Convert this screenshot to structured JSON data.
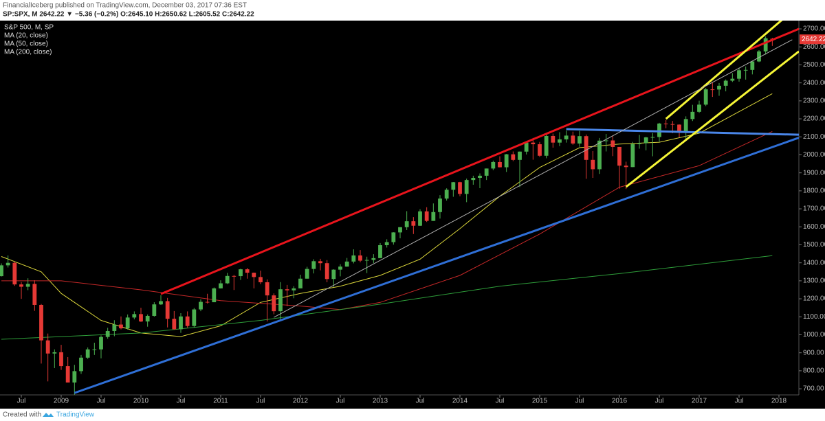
{
  "header": {
    "publisher": "FinancialIceberg published on TradingView.com, December 03, 2017 07:36 EST",
    "quote": "SP:SPX, M  2642.22 ▼ −5.36 (−0.2%) O:2645.10 H:2650.62 L:2605.52 C:2642.22"
  },
  "footer": {
    "created": "Created with",
    "brand": "TradingView"
  },
  "chart_data": {
    "type": "candlestick",
    "title": "S&P 500, M, SP",
    "up_color": "#4caf50",
    "down_color": "#e53935",
    "categories": [
      "2008-04",
      "2008-05",
      "2008-06",
      "2008-07",
      "2008-08",
      "2008-09",
      "2008-10",
      "2008-11",
      "2008-12",
      "2009-01",
      "2009-02",
      "2009-03",
      "2009-04",
      "2009-05",
      "2009-06",
      "2009-07",
      "2009-08",
      "2009-09",
      "2009-10",
      "2009-11",
      "2009-12",
      "2010-01",
      "2010-02",
      "2010-03",
      "2010-04",
      "2010-05",
      "2010-06",
      "2010-07",
      "2010-08",
      "2010-09",
      "2010-10",
      "2010-11",
      "2010-12",
      "2011-01",
      "2011-02",
      "2011-03",
      "2011-04",
      "2011-05",
      "2011-06",
      "2011-07",
      "2011-08",
      "2011-09",
      "2011-10",
      "2011-11",
      "2011-12",
      "2012-01",
      "2012-02",
      "2012-03",
      "2012-04",
      "2012-05",
      "2012-06",
      "2012-07",
      "2012-08",
      "2012-09",
      "2012-10",
      "2012-11",
      "2012-12",
      "2013-01",
      "2013-02",
      "2013-03",
      "2013-04",
      "2013-05",
      "2013-06",
      "2013-07",
      "2013-08",
      "2013-09",
      "2013-10",
      "2013-11",
      "2013-12",
      "2014-01",
      "2014-02",
      "2014-03",
      "2014-04",
      "2014-05",
      "2014-06",
      "2014-07",
      "2014-08",
      "2014-09",
      "2014-10",
      "2014-11",
      "2014-12",
      "2015-01",
      "2015-02",
      "2015-03",
      "2015-04",
      "2015-05",
      "2015-06",
      "2015-07",
      "2015-08",
      "2015-09",
      "2015-10",
      "2015-11",
      "2015-12",
      "2016-01",
      "2016-02",
      "2016-03",
      "2016-04",
      "2016-05",
      "2016-06",
      "2016-07",
      "2016-08",
      "2016-09",
      "2016-10",
      "2016-11",
      "2016-12",
      "2017-01",
      "2017-02",
      "2017-03",
      "2017-04",
      "2017-05",
      "2017-06",
      "2017-07",
      "2017-08",
      "2017-09",
      "2017-10",
      "2017-11",
      "2017-12"
    ],
    "open": [
      1326,
      1386,
      1400,
      1280,
      1267,
      1283,
      1166,
      969,
      896,
      903,
      826,
      735,
      798,
      873,
      919,
      919,
      988,
      1021,
      1057,
      1036,
      1096,
      1115,
      1074,
      1105,
      1169,
      1187,
      1089,
      1031,
      1102,
      1049,
      1141,
      1183,
      1181,
      1258,
      1286,
      1327,
      1326,
      1364,
      1345,
      1321,
      1292,
      1219,
      1131,
      1253,
      1247,
      1258,
      1312,
      1366,
      1409,
      1398,
      1310,
      1362,
      1379,
      1407,
      1441,
      1412,
      1416,
      1426,
      1498,
      1515,
      1569,
      1598,
      1631,
      1606,
      1686,
      1633,
      1682,
      1757,
      1806,
      1848,
      1783,
      1860,
      1872,
      1884,
      1924,
      1960,
      1931,
      2003,
      1972,
      2018,
      2068,
      2059,
      1995,
      2105,
      2068,
      2086,
      2107,
      2063,
      2104,
      1972,
      1920,
      2079,
      2080,
      2044,
      1940,
      1932,
      2060,
      2065,
      2097,
      2099,
      2174,
      2171,
      2168,
      2126,
      2199,
      2239,
      2279,
      2364,
      2363,
      2384,
      2412,
      2423,
      2470,
      2472,
      2519,
      2575,
      2645.1
    ],
    "high": [
      1397,
      1441,
      1405,
      1293,
      1314,
      1303,
      1171,
      1007,
      919,
      944,
      876,
      833,
      888,
      930,
      956,
      997,
      1039,
      1081,
      1102,
      1113,
      1130,
      1150,
      1113,
      1181,
      1220,
      1205,
      1132,
      1120,
      1130,
      1149,
      1197,
      1228,
      1263,
      1303,
      1344,
      1333,
      1367,
      1371,
      1346,
      1357,
      1308,
      1230,
      1293,
      1277,
      1270,
      1334,
      1378,
      1420,
      1422,
      1415,
      1364,
      1392,
      1427,
      1475,
      1471,
      1434,
      1448,
      1510,
      1531,
      1570,
      1598,
      1687,
      1654,
      1698,
      1709,
      1730,
      1776,
      1814,
      1849,
      1850,
      1868,
      1884,
      1897,
      1924,
      1968,
      1992,
      2005,
      2019,
      2019,
      2076,
      2094,
      2072,
      2120,
      2118,
      2126,
      2135,
      2129,
      2133,
      2113,
      2021,
      2094,
      2116,
      2104,
      2044,
      1962,
      2072,
      2111,
      2100,
      2121,
      2178,
      2194,
      2188,
      2169,
      2214,
      2278,
      2301,
      2372,
      2401,
      2399,
      2419,
      2454,
      2484,
      2491,
      2520,
      2582,
      2658,
      2650.62
    ],
    "low": [
      1324,
      1374,
      1272,
      1200,
      1248,
      1133,
      840,
      741,
      815,
      805,
      735,
      667,
      783,
      866,
      888,
      869,
      978,
      992,
      1030,
      1029,
      1086,
      1071,
      1045,
      1101,
      1166,
      1041,
      1028,
      1011,
      1040,
      1040,
      1131,
      1174,
      1181,
      1257,
      1282,
      1249,
      1305,
      1312,
      1258,
      1282,
      1074,
      1114,
      1075,
      1159,
      1203,
      1258,
      1312,
      1341,
      1358,
      1292,
      1267,
      1325,
      1378,
      1397,
      1403,
      1343,
      1398,
      1426,
      1485,
      1501,
      1536,
      1582,
      1560,
      1605,
      1627,
      1633,
      1646,
      1746,
      1767,
      1770,
      1737,
      1834,
      1815,
      1860,
      1915,
      1930,
      1905,
      1965,
      1821,
      2002,
      1973,
      1988,
      1981,
      2040,
      2048,
      2068,
      2056,
      2045,
      1867,
      1872,
      1894,
      2019,
      1993,
      1812,
      1810,
      1932,
      2034,
      2025,
      1992,
      2074,
      2148,
      2120,
      2097,
      2084,
      2188,
      2233,
      2271,
      2322,
      2328,
      2353,
      2405,
      2407,
      2418,
      2447,
      2515,
      2557,
      2605.52
    ],
    "close": [
      1386,
      1400,
      1280,
      1267,
      1283,
      1166,
      969,
      896,
      903,
      826,
      735,
      798,
      873,
      919,
      919,
      988,
      1021,
      1057,
      1036,
      1096,
      1115,
      1074,
      1105,
      1169,
      1187,
      1089,
      1031,
      1102,
      1049,
      1141,
      1183,
      1181,
      1258,
      1286,
      1327,
      1326,
      1364,
      1345,
      1321,
      1292,
      1219,
      1131,
      1253,
      1247,
      1258,
      1312,
      1366,
      1409,
      1398,
      1310,
      1362,
      1379,
      1407,
      1441,
      1412,
      1416,
      1426,
      1498,
      1515,
      1569,
      1598,
      1631,
      1606,
      1686,
      1633,
      1682,
      1757,
      1806,
      1848,
      1783,
      1860,
      1872,
      1884,
      1924,
      1960,
      1931,
      2003,
      1972,
      2018,
      2068,
      2059,
      1995,
      2105,
      2068,
      2086,
      2107,
      2063,
      2104,
      1972,
      1920,
      2079,
      2080,
      2044,
      1940,
      1932,
      2060,
      2065,
      2097,
      2099,
      2174,
      2171,
      2168,
      2126,
      2199,
      2239,
      2279,
      2364,
      2363,
      2384,
      2412,
      2423,
      2470,
      2472,
      2519,
      2575,
      2648,
      2642.22
    ],
    "lines": [
      {
        "name": "MA (20, close)",
        "color": "#d9d43a",
        "x": [
          "2008-04",
          "2008-10",
          "2009-01",
          "2009-07",
          "2010-01",
          "2010-07",
          "2011-01",
          "2011-07",
          "2012-01",
          "2012-07",
          "2013-01",
          "2013-07",
          "2014-01",
          "2014-07",
          "2015-01",
          "2015-07",
          "2016-01",
          "2016-07",
          "2017-01",
          "2017-07",
          "2017-12"
        ],
        "values": [
          1435,
          1350,
          1230,
          1080,
          1010,
          990,
          1050,
          1180,
          1230,
          1270,
          1330,
          1420,
          1590,
          1770,
          1930,
          2040,
          2060,
          2070,
          2120,
          2240,
          2340
        ]
      },
      {
        "name": "MA (50, close)",
        "color": "#c62828",
        "x": [
          "2008-04",
          "2009-01",
          "2010-01",
          "2011-01",
          "2012-01",
          "2012-07",
          "2013-01",
          "2014-01",
          "2015-01",
          "2016-01",
          "2017-01",
          "2017-12"
        ],
        "values": [
          1300,
          1300,
          1250,
          1190,
          1160,
          1140,
          1180,
          1330,
          1560,
          1820,
          1940,
          2130
        ]
      },
      {
        "name": "MA (200, close)",
        "color": "#2e9e3a",
        "x": [
          "2008-04",
          "2010-01",
          "2011-07",
          "2013-01",
          "2014-07",
          "2016-01",
          "2017-12"
        ],
        "values": [
          975,
          1010,
          1080,
          1170,
          1270,
          1340,
          1440
        ]
      }
    ],
    "trendlines": [
      {
        "color": "#e8141c",
        "x": [
          "2010-04",
          "2018-04"
        ],
        "values": [
          1227,
          2700
        ]
      },
      {
        "color": "#2f6fd6",
        "x": [
          "2009-03",
          "2018-04"
        ],
        "values": [
          677,
          2095
        ]
      },
      {
        "color": "#4a86e8",
        "x": [
          "2015-05",
          "2018-04"
        ],
        "values": [
          2143,
          2112
        ]
      },
      {
        "color": "#f5f536",
        "x": [
          "2016-08",
          "2018-04"
        ],
        "values": [
          2200,
          2830
        ]
      },
      {
        "color": "#f5f536",
        "x": [
          "2016-02",
          "2018-04"
        ],
        "values": [
          1822,
          2575
        ]
      },
      {
        "color": "#b0b0b0",
        "x": [
          "2011-09",
          "2018-03"
        ],
        "values": [
          1097,
          2640
        ]
      }
    ],
    "xlim": [
      "2008-04",
      "2018-04"
    ],
    "xticks": [
      {
        "value": "2008-07",
        "label": "Jul"
      },
      {
        "value": "2009-01",
        "label": "2009"
      },
      {
        "value": "2009-07",
        "label": "Jul"
      },
      {
        "value": "2010-01",
        "label": "2010"
      },
      {
        "value": "2010-07",
        "label": "Jul"
      },
      {
        "value": "2011-01",
        "label": "2011"
      },
      {
        "value": "2011-07",
        "label": "Jul"
      },
      {
        "value": "2012-01",
        "label": "2012"
      },
      {
        "value": "2012-07",
        "label": "Jul"
      },
      {
        "value": "2013-01",
        "label": "2013"
      },
      {
        "value": "2013-07",
        "label": "Jul"
      },
      {
        "value": "2014-01",
        "label": "2014"
      },
      {
        "value": "2014-07",
        "label": "Jul"
      },
      {
        "value": "2015-01",
        "label": "2015"
      },
      {
        "value": "2015-07",
        "label": "Jul"
      },
      {
        "value": "2016-01",
        "label": "2016"
      },
      {
        "value": "2016-07",
        "label": "Jul"
      },
      {
        "value": "2017-01",
        "label": "2017"
      },
      {
        "value": "2017-07",
        "label": "Jul"
      },
      {
        "value": "2018-01",
        "label": "2018"
      }
    ],
    "ylim": [
      666,
      2746
    ],
    "yticks": [
      {
        "value": 700,
        "label": "700.00"
      },
      {
        "value": 800,
        "label": "800.00"
      },
      {
        "value": 900,
        "label": "900.00"
      },
      {
        "value": 1000,
        "label": "1000.00"
      },
      {
        "value": 1100,
        "label": "1100.00"
      },
      {
        "value": 1200,
        "label": "1200.00"
      },
      {
        "value": 1300,
        "label": "1300.00"
      },
      {
        "value": 1400,
        "label": "1400.00"
      },
      {
        "value": 1500,
        "label": "1500.00"
      },
      {
        "value": 1600,
        "label": "1600.00"
      },
      {
        "value": 1700,
        "label": "1700.00"
      },
      {
        "value": 1800,
        "label": "1800.00"
      },
      {
        "value": 1900,
        "label": "1900.00"
      },
      {
        "value": 2000,
        "label": "2000.00"
      },
      {
        "value": 2100,
        "label": "2100.00"
      },
      {
        "value": 2200,
        "label": "2200.00"
      },
      {
        "value": 2300,
        "label": "2300.00"
      },
      {
        "value": 2400,
        "label": "2400.00"
      },
      {
        "value": 2500,
        "label": "2500.00"
      },
      {
        "value": 2600,
        "label": "2600.00"
      },
      {
        "value": 2700,
        "label": "2700.00"
      }
    ]
  }
}
